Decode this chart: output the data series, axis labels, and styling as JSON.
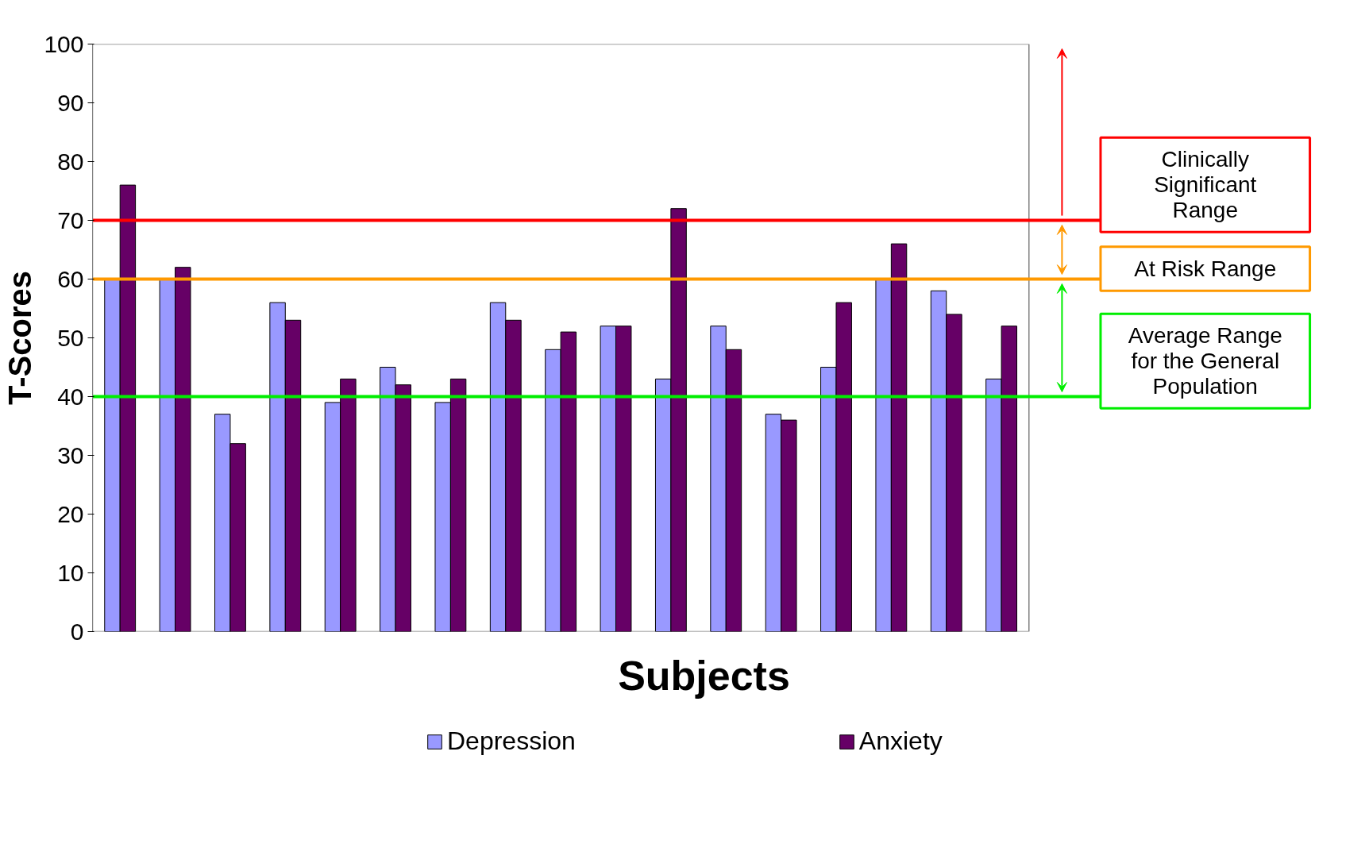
{
  "chart_data": {
    "type": "bar",
    "xlabel": "Subjects",
    "ylabel": "T-Scores",
    "categories": [
      null,
      null,
      null,
      null,
      null,
      null,
      null,
      null,
      null,
      null,
      null,
      null,
      null,
      null,
      null,
      null,
      null
    ],
    "series": [
      {
        "name": "Depression",
        "color": "#9999ff",
        "values": [
          60,
          60,
          37,
          56,
          39,
          45,
          39,
          56,
          48,
          52,
          43,
          52,
          37,
          45,
          60,
          58,
          43
        ]
      },
      {
        "name": "Anxiety",
        "color": "#660066",
        "values": [
          76,
          62,
          32,
          53,
          43,
          42,
          43,
          53,
          51,
          52,
          72,
          48,
          36,
          56,
          66,
          54,
          52
        ]
      }
    ],
    "ylim": [
      0,
      100
    ],
    "yticks": [
      0,
      10,
      20,
      30,
      40,
      50,
      60,
      70,
      80,
      90,
      100
    ],
    "ref_lines": [
      {
        "axis": "y",
        "value": 70,
        "label": "Clinically Significant Range",
        "color": "#ff0000"
      },
      {
        "axis": "y",
        "value": 60,
        "label": "At Risk Range",
        "color": "#ff9900"
      },
      {
        "axis": "y",
        "value": 40,
        "label": "Average Range for the General Population",
        "color": "#00ee00"
      }
    ],
    "grid": false,
    "legend": "bottom"
  }
}
